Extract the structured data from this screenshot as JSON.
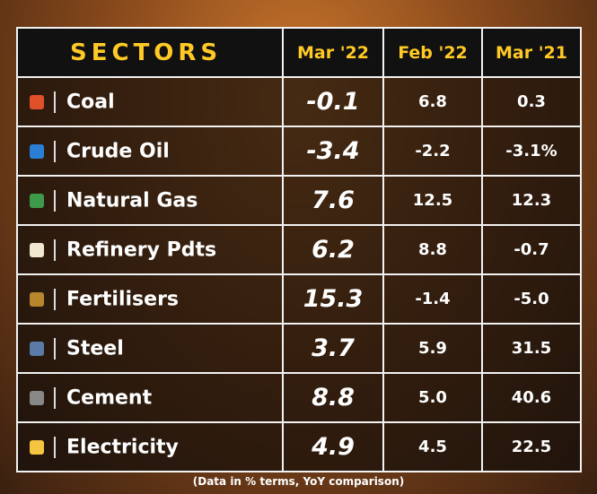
{
  "header": {
    "title": "SECTORS",
    "columns": [
      "Mar '22",
      "Feb '22",
      "Mar '21"
    ]
  },
  "table": {
    "rows": [
      [
        "Coal",
        "-0.1",
        "6.8",
        "0.3"
      ],
      [
        "Crude Oil",
        "-3.4",
        "-2.2",
        "-3.1%"
      ],
      [
        "Natural Gas",
        "7.6",
        "12.5",
        "12.3"
      ],
      [
        "Refinery Pdts",
        "6.2",
        "8.8",
        "-0.7"
      ],
      [
        "Fertilisers",
        "15.3",
        "-1.4",
        "-5.0"
      ],
      [
        "Steel",
        "3.7",
        "5.9",
        "31.5"
      ],
      [
        "Cement",
        "8.8",
        "5.0",
        "40.6"
      ],
      [
        "Electricity",
        "4.9",
        "4.5",
        "22.5"
      ]
    ]
  },
  "footnote": "(Data in % terms, YoY comparison)"
}
